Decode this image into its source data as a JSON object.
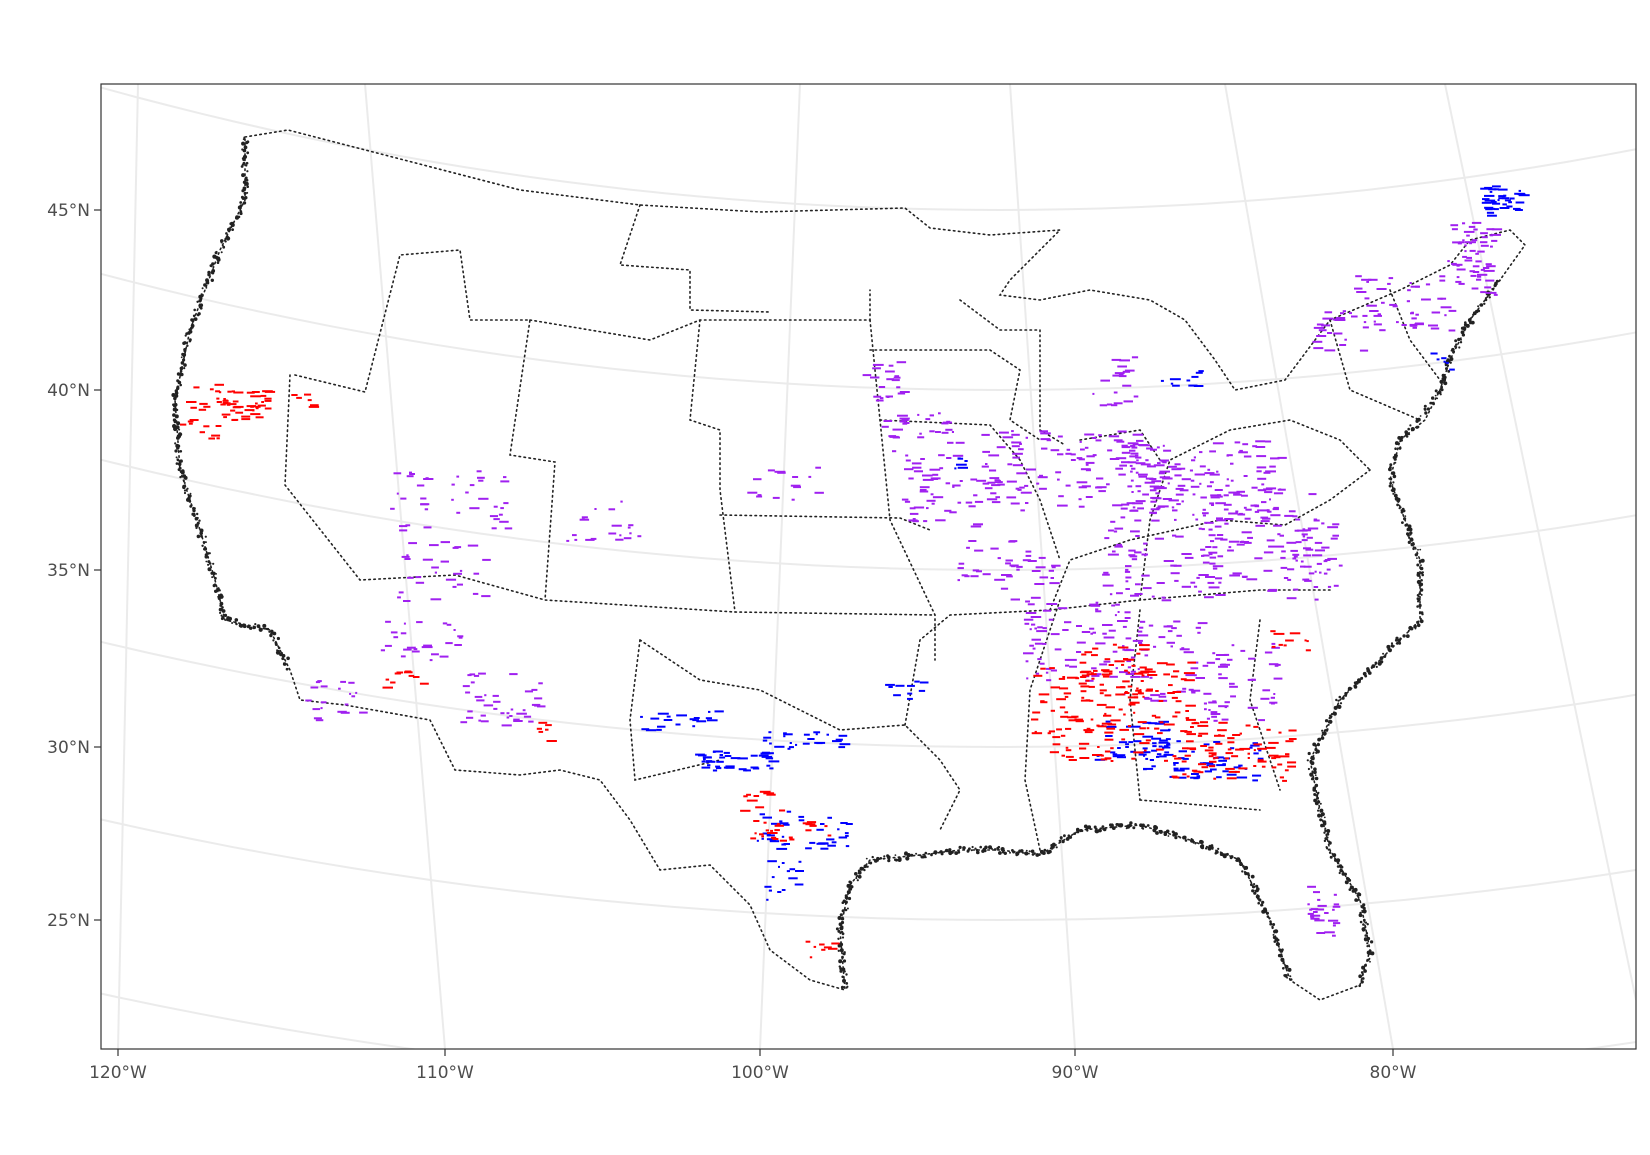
{
  "map": {
    "projection": "conic",
    "x_axis": {
      "ticks": [
        {
          "lon": -120,
          "label": "120°W"
        },
        {
          "lon": -110,
          "label": "110°W"
        },
        {
          "lon": -100,
          "label": "100°W"
        },
        {
          "lon": -90,
          "label": "90°W"
        },
        {
          "lon": -80,
          "label": "80°W"
        }
      ]
    },
    "y_axis": {
      "ticks": [
        {
          "lat": 45,
          "label": "45°N"
        },
        {
          "lat": 40,
          "label": "40°N"
        },
        {
          "lat": 35,
          "label": "35°N"
        },
        {
          "lat": 30,
          "label": "30°N"
        },
        {
          "lat": 25,
          "label": "25°N"
        }
      ]
    },
    "graticule": "on",
    "boundary_style": "dotted",
    "colors": {
      "graticule": "#ebebeb",
      "panel_border": "#333333",
      "boundary": "#222222",
      "coast": "#222222",
      "red": "#ff0000",
      "blue": "#0000ff",
      "purple": "#a020f0"
    },
    "point_groups": [
      {
        "name": "red",
        "color": "#ff0000"
      },
      {
        "name": "blue",
        "color": "#0000ff"
      },
      {
        "name": "purple",
        "color": "#a020f0"
      }
    ]
  }
}
